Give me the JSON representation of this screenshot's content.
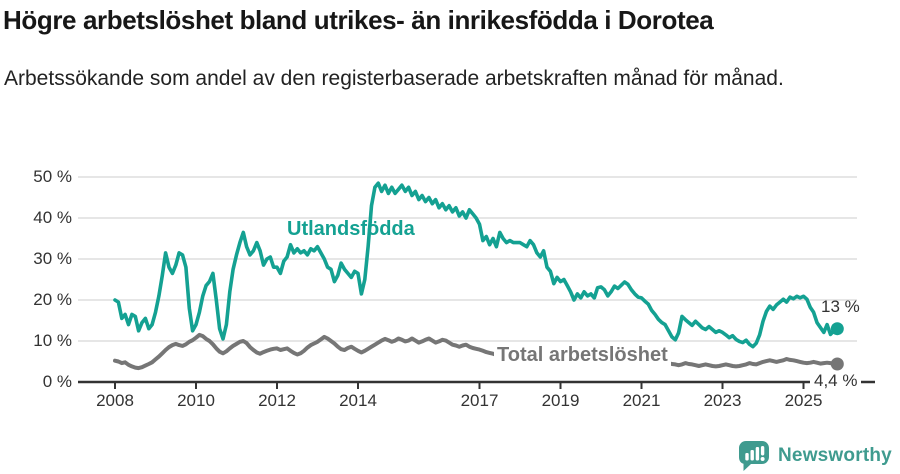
{
  "header": {
    "title": "Högre arbetslöshet bland utrikes- än inrikesfödda i Dorotea",
    "subtitle": "Arbetssökande som andel av den registerbaserade arbetskraften månad för månad."
  },
  "footer": {
    "brand": "Newsworthy",
    "brand_color": "#3F9B8F",
    "brand_icon": "bar-chart-speech-bubble"
  },
  "chart_data": {
    "type": "line",
    "unit": "%",
    "grid": "horizontal-only",
    "frequency": "monthly",
    "start": "2008-01",
    "end": "2025-11",
    "x_axis": {
      "ticks": [
        "2008",
        "2010",
        "2012",
        "2014",
        "2017",
        "2019",
        "2021",
        "2023",
        "2025"
      ],
      "tick_years": [
        2008,
        2010,
        2012,
        2014,
        2017,
        2019,
        2021,
        2023,
        2025
      ],
      "range": [
        2008,
        2026.3
      ]
    },
    "y_axis": {
      "ticks": [
        0,
        10,
        20,
        30,
        40,
        50
      ],
      "tick_suffix": " %",
      "range": [
        0,
        50
      ]
    },
    "colors": {
      "gridline": "#dedede",
      "axis": "#333333"
    },
    "series": [
      {
        "name": "Utlandsfödda",
        "color": "#14A192",
        "end_label": "13 %",
        "values": [
          20,
          19.5,
          15.5,
          16.5,
          14,
          16.5,
          16,
          12.5,
          14.5,
          15.5,
          13,
          14,
          17,
          21,
          26,
          31.5,
          28,
          26.5,
          28.5,
          31.5,
          31,
          28,
          18,
          12.5,
          14,
          17,
          21,
          23.5,
          24.5,
          26.5,
          20,
          13,
          10.5,
          14,
          22,
          27.5,
          31,
          34,
          36.5,
          33,
          31,
          32,
          34,
          32,
          28.5,
          30,
          30.5,
          28,
          28,
          26.5,
          29.5,
          30.5,
          33.5,
          31.5,
          32.5,
          31.5,
          32,
          31,
          32.5,
          32,
          33,
          31.5,
          30,
          28,
          27.5,
          24.5,
          26,
          29,
          27.5,
          26.5,
          25.5,
          27,
          26.5,
          21.5,
          25,
          33,
          43,
          47.5,
          48.5,
          46.5,
          48,
          46,
          47.5,
          46,
          47,
          48,
          46.5,
          47.5,
          45.5,
          46.5,
          44.5,
          45.5,
          44,
          45,
          43.5,
          44.5,
          42.5,
          43.5,
          42,
          43,
          41.5,
          42.5,
          40.5,
          41.5,
          40,
          42,
          41,
          40,
          38.5,
          34.5,
          35.5,
          33.5,
          35,
          33,
          36.5,
          35,
          34,
          34.5,
          34,
          34,
          34,
          33.5,
          33,
          34.5,
          33.5,
          31.5,
          30.5,
          32,
          28,
          27,
          24,
          25.5,
          24.5,
          25,
          23.5,
          22,
          20,
          21.5,
          20.5,
          22,
          21,
          21.5,
          20.5,
          23,
          23.2,
          22.5,
          21,
          22,
          23.4,
          22.8,
          23.6,
          24.4,
          23.8,
          22.5,
          21.5,
          20.7,
          20.5,
          19.7,
          19,
          17.5,
          16.5,
          15.3,
          14.5,
          14,
          12.5,
          11,
          10.3,
          12,
          16,
          15.2,
          14.5,
          13.8,
          14.8,
          14,
          13.2,
          12.8,
          13.5,
          12.8,
          12.1,
          12.5,
          12.1,
          11.5,
          10.8,
          11.3,
          10.4,
          9.9,
          9.6,
          10.2,
          9.2,
          8.6,
          9.5,
          11.5,
          14.8,
          17.2,
          18.5,
          17.7,
          18.8,
          19.5,
          20.2,
          19.5,
          20.7,
          20.3,
          20.9,
          20.5,
          20.9,
          20.2,
          18.2,
          17,
          14.5,
          13.3,
          12.1,
          14,
          11.6,
          12.5,
          13
        ]
      },
      {
        "name": "Total arbetslöshet",
        "color": "#767676",
        "end_label": "4,4 %",
        "values": [
          5.2,
          5,
          4.6,
          4.8,
          4.2,
          3.8,
          3.5,
          3.4,
          3.6,
          4,
          4.4,
          4.8,
          5.5,
          6.2,
          7,
          7.8,
          8.5,
          9,
          9.3,
          9,
          8.8,
          9.2,
          9.8,
          10.2,
          10.8,
          11.5,
          11.2,
          10.5,
          10,
          9.2,
          8.2,
          7.4,
          7,
          7.5,
          8.2,
          8.8,
          9.3,
          9.8,
          10,
          9.5,
          8.5,
          7.8,
          7.2,
          6.9,
          7.3,
          7.6,
          7.9,
          8.1,
          8.2,
          7.8,
          8,
          8.2,
          7.6,
          7.1,
          6.7,
          7,
          7.6,
          8.4,
          9,
          9.4,
          9.8,
          10.4,
          11,
          10.6,
          10,
          9.4,
          8.6,
          8,
          7.8,
          8.3,
          8.6,
          8.1,
          7.6,
          7.2,
          7.6,
          8.1,
          8.6,
          9.1,
          9.6,
          10.1,
          10.5,
          10.2,
          9.8,
          10.1,
          10.6,
          10.3,
          9.9,
          10.1,
          10.6,
          10.1,
          9.6,
          9.9,
          10.3,
          10.6,
          10.1,
          9.6,
          9.9,
          10.3,
          10.1,
          9.6,
          9.1,
          8.9,
          8.6,
          8.9,
          9.1,
          8.6,
          8.3,
          8.1,
          7.9,
          7.6,
          7.3,
          7.1,
          6.9,
          6.6,
          6.4,
          6.6,
          6.9,
          6.6,
          6.3,
          6.1,
          5.9,
          5.6,
          5.4,
          5.6,
          5.9,
          5.6,
          5.3,
          5.1,
          5.3,
          5.6,
          5.4,
          5.1,
          5.3,
          5.6,
          5.4,
          5.1,
          4.9,
          5.1,
          5.3,
          5.1,
          4.9,
          4.7,
          4.9,
          5.1,
          5.6,
          5.9,
          6.1,
          6.3,
          6.1,
          5.9,
          5.6,
          5.4,
          5.6,
          5.3,
          5.1,
          4.9,
          5.1,
          5.3,
          5.1,
          4.9,
          4.6,
          4.4,
          4.3,
          4.4,
          4.6,
          4.4,
          4.3,
          4.1,
          4.3,
          4.6,
          4.4,
          4.3,
          4.1,
          3.9,
          4.1,
          4.3,
          4.1,
          3.9,
          3.8,
          3.9,
          4.1,
          4.3,
          4.1,
          3.9,
          3.8,
          3.9,
          4.1,
          4.3,
          4.6,
          4.4,
          4.3,
          4.6,
          4.9,
          5.1,
          5.3,
          5.1,
          4.9,
          5.1,
          5.3,
          5.6,
          5.4,
          5.3,
          5.1,
          4.9,
          4.7,
          4.6,
          4.7,
          4.9,
          4.7,
          4.5,
          4.6,
          4.7,
          4.6,
          4.5,
          4.4
        ]
      }
    ]
  }
}
